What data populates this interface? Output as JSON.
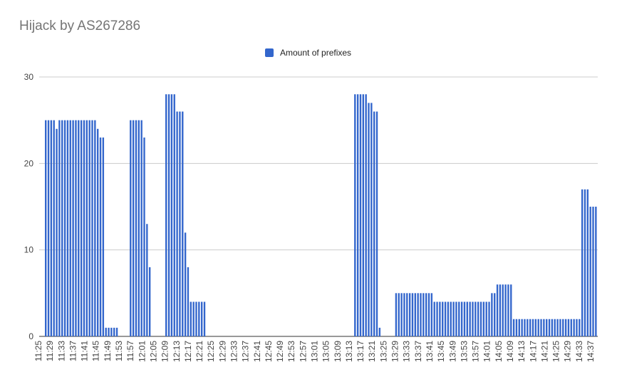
{
  "chart_data": {
    "type": "bar",
    "title": "Hijack by AS267286",
    "xlabel": "",
    "ylabel": "",
    "ylim": [
      0,
      30
    ],
    "yticks": [
      0,
      10,
      20,
      30
    ],
    "grid": true,
    "legend_position": "top",
    "series": [
      {
        "name": "Amount of prefixes",
        "color": "#3366cc",
        "values": [
          25,
          25,
          25,
          25,
          24,
          25,
          25,
          25,
          25,
          25,
          25,
          25,
          25,
          25,
          25,
          25,
          25,
          25,
          25,
          24,
          23,
          23,
          1,
          1,
          1,
          1,
          1,
          0,
          0,
          0,
          0,
          25,
          25,
          25,
          25,
          25,
          23,
          13,
          8,
          0,
          0,
          0,
          0,
          0,
          28,
          28,
          28,
          28,
          26,
          26,
          26,
          12,
          8,
          4,
          4,
          4,
          4,
          4,
          4,
          0,
          0,
          0,
          0,
          0,
          0,
          0,
          0,
          0,
          0,
          0,
          0,
          0,
          0,
          0,
          0,
          0,
          0,
          0,
          0,
          0,
          0,
          0,
          0,
          0,
          0,
          0,
          0,
          0,
          0,
          0,
          0,
          0,
          0,
          0,
          0,
          0,
          0,
          0,
          0,
          0,
          0,
          0,
          0,
          0,
          0,
          0,
          0,
          0,
          0,
          0,
          0,
          0,
          0,
          28,
          28,
          28,
          28,
          28,
          27,
          27,
          26,
          26,
          1,
          0,
          0,
          0,
          0,
          0,
          5,
          5,
          5,
          5,
          5,
          5,
          5,
          5,
          5,
          5,
          5,
          5,
          5,
          5,
          4,
          4,
          4,
          4,
          4,
          4,
          4,
          4,
          4,
          4,
          4,
          4,
          4,
          4,
          4,
          4,
          4,
          4,
          4,
          4,
          4,
          5,
          5,
          6,
          6,
          6,
          6,
          6,
          6,
          2,
          2,
          2,
          2,
          2,
          2,
          2,
          2,
          2,
          2,
          2,
          2,
          2,
          2,
          2,
          2,
          2,
          2,
          2,
          2,
          2,
          2,
          2,
          2,
          2,
          17,
          17,
          17,
          15,
          15,
          15
        ]
      }
    ],
    "x_start": "11:25",
    "x_step_minutes": 0.5,
    "categories_shown": [
      "11:25",
      "11:29",
      "11:33",
      "11:37",
      "11:41",
      "11:45",
      "11:49",
      "11:53",
      "11:57",
      "12:01",
      "12:05",
      "12:09",
      "12:13",
      "12:17",
      "12:21",
      "12:25",
      "12:29",
      "12:33",
      "12:37",
      "12:41",
      "12:45",
      "12:49",
      "12:53",
      "12:57",
      "13:01",
      "13:05",
      "13:09",
      "13:13",
      "13:17",
      "13:21",
      "13:25",
      "13:29",
      "13:33",
      "13:37",
      "13:41",
      "13:45",
      "13:49",
      "13:53",
      "13:57",
      "14:01",
      "14:05",
      "14:09",
      "14:13",
      "14:17",
      "14:21",
      "14:25",
      "14:29",
      "14:33",
      "14:37"
    ]
  }
}
